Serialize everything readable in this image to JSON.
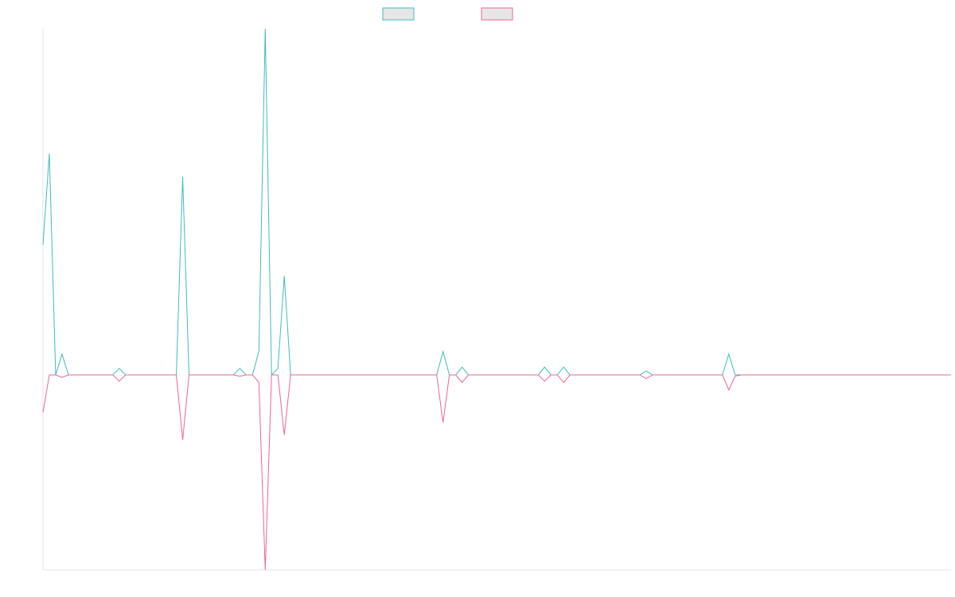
{
  "chart_data": {
    "type": "line",
    "title": "",
    "xlabel": "",
    "ylabel": "",
    "grid": false,
    "legend_placement": "top-center",
    "x_count": 144,
    "ylim": [
      -1.1,
      1.0
    ],
    "series": [
      {
        "name": "",
        "color": "#3dbdc2",
        "values": [
          0.5,
          0.85,
          0.0,
          0.08,
          0.0,
          0.0,
          0.0,
          0.0,
          0.0,
          0.0,
          0.0,
          0.0,
          0.025,
          0.0,
          0.0,
          0.0,
          0.0,
          0.0,
          0.0,
          0.0,
          0.0,
          0.0,
          0.76,
          0.0,
          0.0,
          0.0,
          0.0,
          0.0,
          0.0,
          0.0,
          0.0,
          0.025,
          0.0,
          0.0,
          0.09,
          1.33,
          0.0,
          0.025,
          0.38,
          0.0,
          0.0,
          0.0,
          0.0,
          0.0,
          0.0,
          0.0,
          0.0,
          0.0,
          0.0,
          0.0,
          0.0,
          0.0,
          0.0,
          0.0,
          0.0,
          0.0,
          0.0,
          0.0,
          0.0,
          0.0,
          0.0,
          0.0,
          0.0,
          0.09,
          0.0,
          0.0,
          0.03,
          0.0,
          0.0,
          0.0,
          0.0,
          0.0,
          0.0,
          0.0,
          0.0,
          0.0,
          0.0,
          0.0,
          0.0,
          0.03,
          0.0,
          0.0,
          0.03,
          0.0,
          0.0,
          0.0,
          0.0,
          0.0,
          0.0,
          0.0,
          0.0,
          0.0,
          0.0,
          0.0,
          0.0,
          0.015,
          0.0,
          0.0,
          0.0,
          0.0,
          0.0,
          0.0,
          0.0,
          0.0,
          0.0,
          0.0,
          0.0,
          0.0,
          0.08,
          0.0,
          0.0,
          0.0,
          0.0,
          0.0,
          0.0,
          0.0,
          0.0,
          0.0,
          0.0,
          0.0,
          0.0,
          0.0,
          0.0,
          0.0,
          0.0,
          0.0,
          0.0,
          0.0,
          0.0,
          0.0,
          0.0,
          0.0,
          0.0,
          0.0,
          0.0,
          0.0,
          0.0,
          0.0,
          0.0,
          0.0,
          0.0,
          0.0,
          0.0,
          0.0
        ]
      },
      {
        "name": "",
        "color": "#f0668f",
        "values": [
          -0.15,
          0.0,
          0.0,
          -0.01,
          0.0,
          0.0,
          0.0,
          0.0,
          0.0,
          0.0,
          0.0,
          0.0,
          -0.025,
          0.0,
          0.0,
          0.0,
          0.0,
          0.0,
          0.0,
          0.0,
          0.0,
          0.0,
          -0.26,
          0.0,
          0.0,
          0.0,
          0.0,
          0.0,
          0.0,
          0.0,
          0.0,
          -0.005,
          0.0,
          0.0,
          -0.03,
          -0.78,
          0.0,
          0.0,
          -0.24,
          0.0,
          0.0,
          0.0,
          0.0,
          0.0,
          0.0,
          0.0,
          0.0,
          0.0,
          0.0,
          0.0,
          0.0,
          0.0,
          0.0,
          0.0,
          0.0,
          0.0,
          0.0,
          0.0,
          0.0,
          0.0,
          0.0,
          0.0,
          0.0,
          -0.19,
          0.0,
          0.0,
          -0.03,
          0.0,
          0.0,
          0.0,
          0.0,
          0.0,
          0.0,
          0.0,
          0.0,
          0.0,
          0.0,
          0.0,
          0.0,
          -0.025,
          0.0,
          0.0,
          -0.03,
          0.0,
          0.0,
          0.0,
          0.0,
          0.0,
          0.0,
          0.0,
          0.0,
          0.0,
          0.0,
          0.0,
          0.0,
          -0.015,
          0.0,
          0.0,
          0.0,
          0.0,
          0.0,
          0.0,
          0.0,
          0.0,
          0.0,
          0.0,
          0.0,
          0.0,
          -0.06,
          -0.005,
          0.0,
          0.0,
          0.0,
          0.0,
          0.0,
          0.0,
          0.0,
          0.0,
          0.0,
          0.0,
          0.0,
          0.0,
          0.0,
          0.0,
          0.0,
          0.0,
          0.0,
          0.0,
          0.0,
          0.0,
          0.0,
          0.0,
          0.0,
          0.0,
          0.0,
          0.0,
          0.0,
          0.0,
          0.0,
          0.0,
          0.0,
          0.0,
          0.0,
          0.0
        ]
      }
    ]
  }
}
